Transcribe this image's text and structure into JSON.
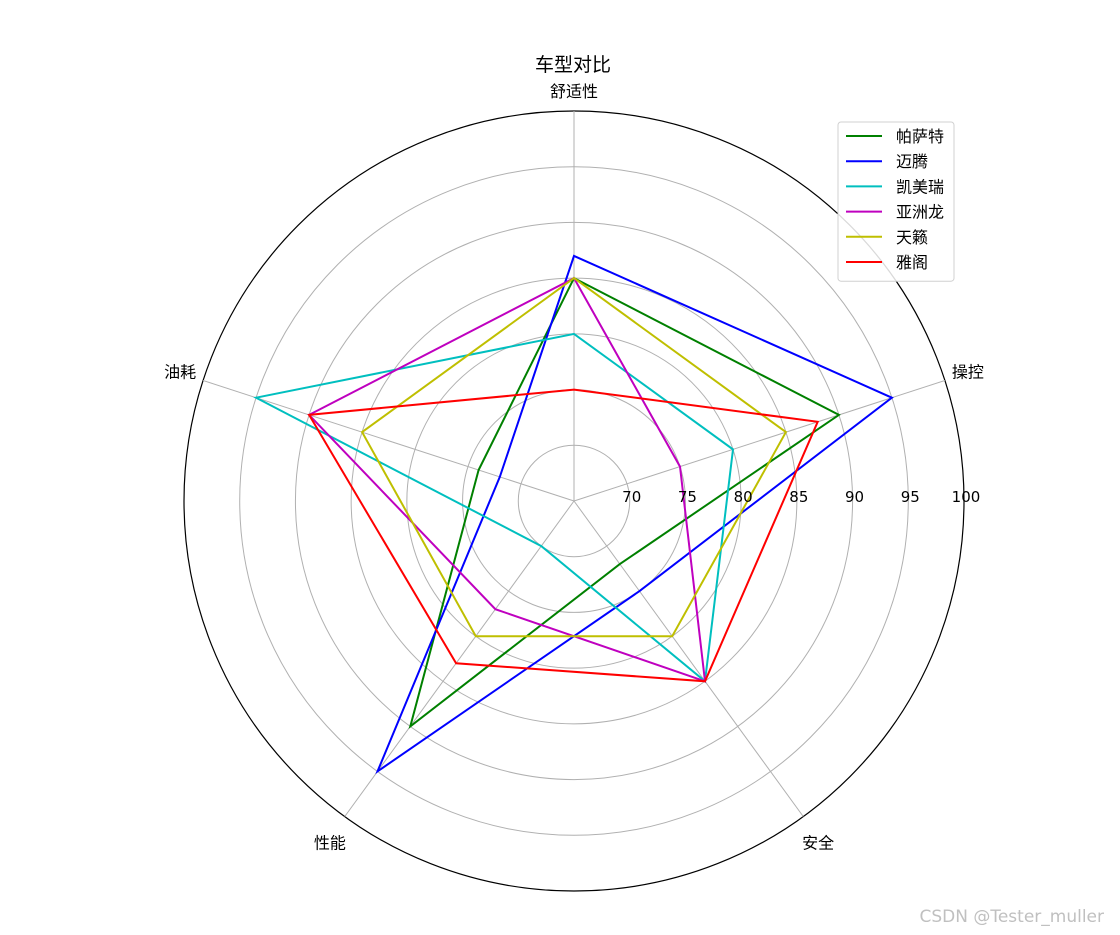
{
  "chart_data": {
    "type": "radar",
    "title": "车型对比",
    "axes": [
      "舒适性",
      "操控",
      "安全",
      "性能",
      "油耗"
    ],
    "rlim": [
      65,
      100
    ],
    "r_ticks": [
      70,
      75,
      80,
      85,
      90,
      95,
      100
    ],
    "grid": true,
    "legend_position": "top-right",
    "series": [
      {
        "name": "帕萨特",
        "color": "#008000",
        "values": [
          85,
          90,
          72,
          90,
          74
        ]
      },
      {
        "name": "迈腾",
        "color": "#0000ff",
        "values": [
          87,
          95,
          75,
          95,
          72
        ]
      },
      {
        "name": "凯美瑞",
        "color": "#00bfbf",
        "values": [
          80,
          80,
          85,
          70,
          95
        ]
      },
      {
        "name": "亚洲龙",
        "color": "#bf00bf",
        "values": [
          85,
          75,
          85,
          77,
          90
        ]
      },
      {
        "name": "天籁",
        "color": "#bfbf00",
        "values": [
          85,
          85,
          80,
          80,
          85
        ]
      },
      {
        "name": "雅阁",
        "color": "#ff0000",
        "values": [
          75,
          88,
          85,
          83,
          90
        ]
      }
    ]
  },
  "watermark": "CSDN @Tester_muller"
}
